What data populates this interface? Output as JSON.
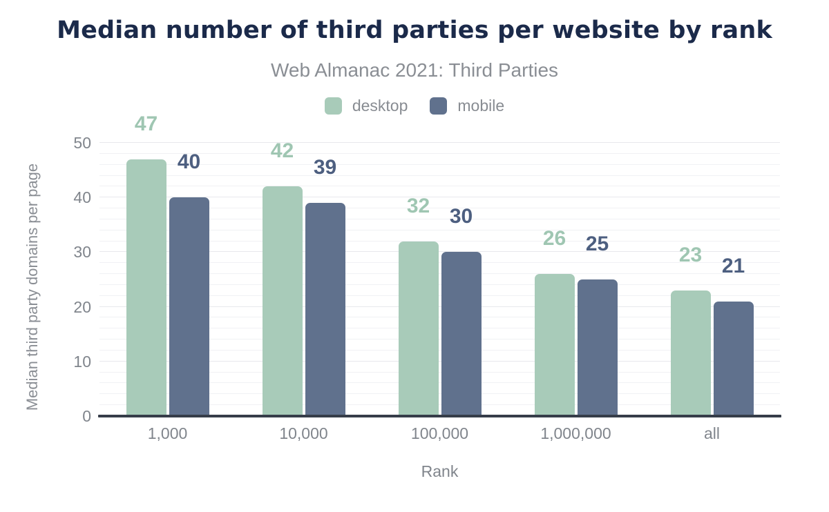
{
  "chart_data": {
    "type": "bar",
    "title": "Median number of third parties per website by rank",
    "subtitle": "Web Almanac 2021: Third Parties",
    "categories": [
      "1,000",
      "10,000",
      "100,000",
      "1,000,000",
      "all"
    ],
    "series": [
      {
        "name": "desktop",
        "values": [
          47,
          42,
          32,
          26,
          23
        ],
        "color": "#a8cbb9",
        "label_color": "#9fc6b2"
      },
      {
        "name": "mobile",
        "values": [
          40,
          39,
          30,
          25,
          21
        ],
        "color": "#60718d",
        "label_color": "#4d5f80"
      }
    ],
    "xlabel": "Rank",
    "ylabel": "Median third party domains per page",
    "ylim": [
      0,
      50
    ],
    "yticks": [
      0,
      10,
      20,
      30,
      40,
      50
    ],
    "grid": {
      "horizontal": true,
      "minor_step": 2,
      "major_step": 10
    },
    "legend_position": "top",
    "data_labels": true
  },
  "colors": {
    "title": "#1b2a4a",
    "subtitle": "#8a8e94",
    "axis_text": "#80858c",
    "baseline": "#363d49",
    "grid_minor": "#f0f1f4",
    "grid_major": "#e7e8ec",
    "background": "#ffffff"
  }
}
